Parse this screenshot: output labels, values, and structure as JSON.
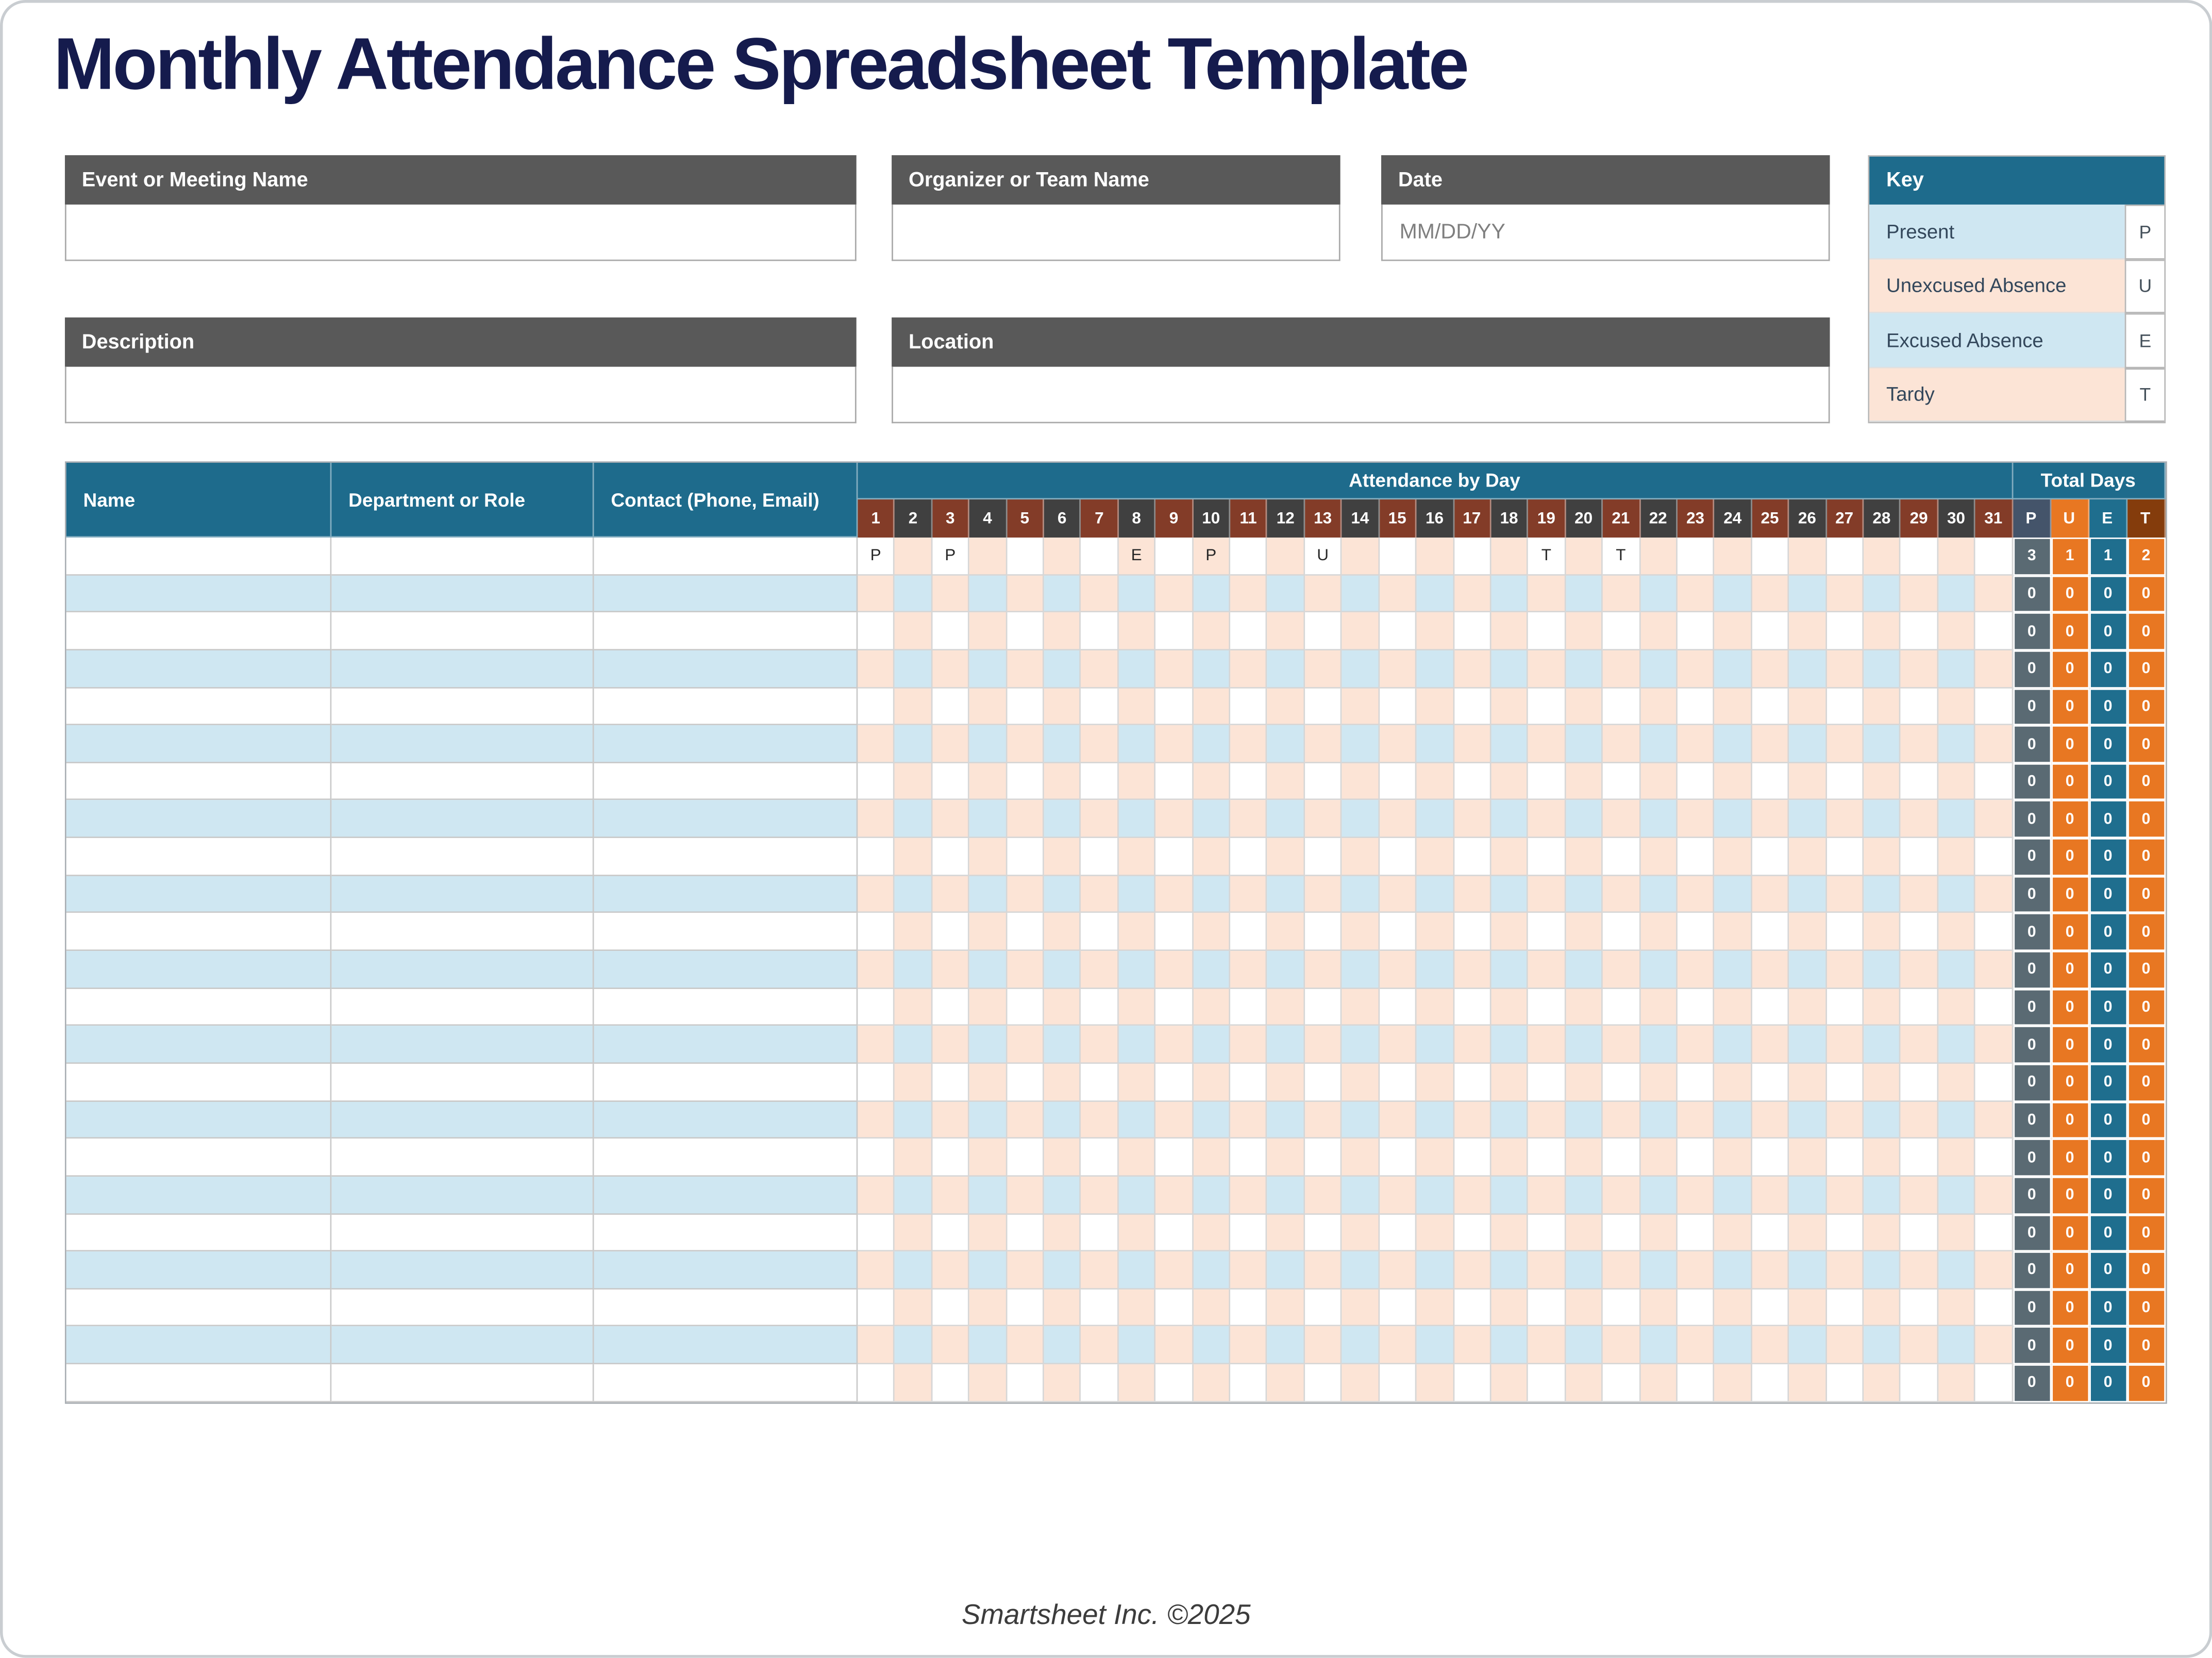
{
  "page": {
    "title": "Monthly Attendance Spreadsheet Template",
    "footer": "Smartsheet Inc. ©2025"
  },
  "form": {
    "event": {
      "label": "Event or Meeting Name",
      "value": ""
    },
    "organizer": {
      "label": "Organizer or Team Name",
      "value": ""
    },
    "date": {
      "label": "Date",
      "value": "MM/DD/YY"
    },
    "description": {
      "label": "Description",
      "value": ""
    },
    "location": {
      "label": "Location",
      "value": ""
    }
  },
  "key": {
    "title": "Key",
    "items": [
      {
        "label": "Present",
        "code": "P",
        "swatch": "blue"
      },
      {
        "label": "Unexcused Absence",
        "code": "U",
        "swatch": "peach"
      },
      {
        "label": "Excused Absence",
        "code": "E",
        "swatch": "blue"
      },
      {
        "label": "Tardy",
        "code": "T",
        "swatch": "peach"
      }
    ]
  },
  "table": {
    "columns": [
      "Name",
      "Department or Role",
      "Contact (Phone, Email)"
    ],
    "attendance_header": "Attendance by Day",
    "totals_header": "Total Days",
    "days": [
      1,
      2,
      3,
      4,
      5,
      6,
      7,
      8,
      9,
      10,
      11,
      12,
      13,
      14,
      15,
      16,
      17,
      18,
      19,
      20,
      21,
      22,
      23,
      24,
      25,
      26,
      27,
      28,
      29,
      30,
      31
    ],
    "total_columns": [
      "P",
      "U",
      "E",
      "T"
    ],
    "rows": [
      {
        "name": "",
        "department": "",
        "contact": "",
        "attendance": {
          "1": "P",
          "3": "P",
          "8": "E",
          "10": "P",
          "13": "U",
          "19": "T",
          "21": "T"
        },
        "totals": [
          3,
          1,
          1,
          2
        ]
      },
      {
        "name": "",
        "department": "",
        "contact": "",
        "attendance": {},
        "totals": [
          0,
          0,
          0,
          0
        ]
      },
      {
        "name": "",
        "department": "",
        "contact": "",
        "attendance": {},
        "totals": [
          0,
          0,
          0,
          0
        ]
      },
      {
        "name": "",
        "department": "",
        "contact": "",
        "attendance": {},
        "totals": [
          0,
          0,
          0,
          0
        ]
      },
      {
        "name": "",
        "department": "",
        "contact": "",
        "attendance": {},
        "totals": [
          0,
          0,
          0,
          0
        ]
      },
      {
        "name": "",
        "department": "",
        "contact": "",
        "attendance": {},
        "totals": [
          0,
          0,
          0,
          0
        ]
      },
      {
        "name": "",
        "department": "",
        "contact": "",
        "attendance": {},
        "totals": [
          0,
          0,
          0,
          0
        ]
      },
      {
        "name": "",
        "department": "",
        "contact": "",
        "attendance": {},
        "totals": [
          0,
          0,
          0,
          0
        ]
      },
      {
        "name": "",
        "department": "",
        "contact": "",
        "attendance": {},
        "totals": [
          0,
          0,
          0,
          0
        ]
      },
      {
        "name": "",
        "department": "",
        "contact": "",
        "attendance": {},
        "totals": [
          0,
          0,
          0,
          0
        ]
      },
      {
        "name": "",
        "department": "",
        "contact": "",
        "attendance": {},
        "totals": [
          0,
          0,
          0,
          0
        ]
      },
      {
        "name": "",
        "department": "",
        "contact": "",
        "attendance": {},
        "totals": [
          0,
          0,
          0,
          0
        ]
      },
      {
        "name": "",
        "department": "",
        "contact": "",
        "attendance": {},
        "totals": [
          0,
          0,
          0,
          0
        ]
      },
      {
        "name": "",
        "department": "",
        "contact": "",
        "attendance": {},
        "totals": [
          0,
          0,
          0,
          0
        ]
      },
      {
        "name": "",
        "department": "",
        "contact": "",
        "attendance": {},
        "totals": [
          0,
          0,
          0,
          0
        ]
      },
      {
        "name": "",
        "department": "",
        "contact": "",
        "attendance": {},
        "totals": [
          0,
          0,
          0,
          0
        ]
      },
      {
        "name": "",
        "department": "",
        "contact": "",
        "attendance": {},
        "totals": [
          0,
          0,
          0,
          0
        ]
      },
      {
        "name": "",
        "department": "",
        "contact": "",
        "attendance": {},
        "totals": [
          0,
          0,
          0,
          0
        ]
      },
      {
        "name": "",
        "department": "",
        "contact": "",
        "attendance": {},
        "totals": [
          0,
          0,
          0,
          0
        ]
      },
      {
        "name": "",
        "department": "",
        "contact": "",
        "attendance": {},
        "totals": [
          0,
          0,
          0,
          0
        ]
      },
      {
        "name": "",
        "department": "",
        "contact": "",
        "attendance": {},
        "totals": [
          0,
          0,
          0,
          0
        ]
      },
      {
        "name": "",
        "department": "",
        "contact": "",
        "attendance": {},
        "totals": [
          0,
          0,
          0,
          0
        ]
      },
      {
        "name": "",
        "department": "",
        "contact": "",
        "attendance": {},
        "totals": [
          0,
          0,
          0,
          0
        ]
      }
    ]
  },
  "colors": {
    "teal": "#1E6B8C",
    "label-gray": "#595959",
    "blue-light": "#CFE7F2",
    "peach": "#FCE4D6",
    "brick": "#833C28",
    "charcoal": "#404040",
    "navy": "#151B4D",
    "tot-p": "#5A6A73",
    "tot-u": "#E87722",
    "tot-e": "#1F6E8E",
    "tot-t": "#E87722",
    "hdr-p": "#44546A",
    "hdr-u": "#E87722",
    "hdr-e": "#1F6E8E",
    "hdr-t": "#843C0C"
  }
}
